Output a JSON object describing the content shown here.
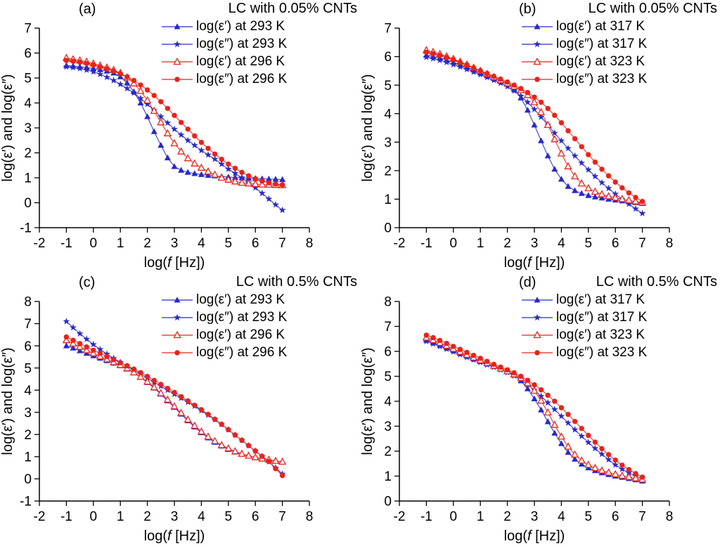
{
  "chart_data": {
    "type": "scatter",
    "colors": {
      "blue": "#2929c8",
      "red": "#e82319"
    },
    "axes_common": {
      "xlim": [
        -2,
        8
      ],
      "xticks": [
        -2,
        -1,
        0,
        1,
        2,
        3,
        4,
        5,
        6,
        7,
        8
      ],
      "xlabel_parts": [
        "log(",
        "f",
        " [Hz])"
      ],
      "ylabel": "log(ε′) and log(ε″)"
    },
    "panels": [
      {
        "letter": "(a)",
        "title": "LC with 0.05% CNTs",
        "ylim": [
          -1,
          7
        ],
        "yticks": [
          -1,
          0,
          1,
          2,
          3,
          4,
          5,
          6,
          7
        ],
        "series": [
          {
            "name": "log(ε′) at 293 K",
            "marker": "triangle-filled",
            "color": "blue",
            "x_start": -1,
            "x_step": 0.25,
            "y": [
              5.5,
              5.48,
              5.45,
              5.42,
              5.38,
              5.33,
              5.28,
              5.2,
              5.05,
              4.8,
              4.45,
              4.0,
              3.45,
              2.85,
              2.3,
              1.8,
              1.45,
              1.3,
              1.22,
              1.17,
              1.13,
              1.1,
              1.08,
              1.05,
              1.03,
              1.01,
              1.0,
              0.98,
              0.97,
              0.96,
              0.95,
              0.94,
              0.93
            ]
          },
          {
            "name": "log(ε″) at 293 K",
            "marker": "star",
            "color": "blue",
            "x_start": -1,
            "x_step": 0.25,
            "y": [
              5.45,
              5.42,
              5.38,
              5.32,
              5.25,
              5.15,
              5.03,
              4.9,
              4.75,
              4.58,
              4.4,
              4.18,
              3.95,
              3.7,
              3.45,
              3.2,
              2.95,
              2.72,
              2.5,
              2.3,
              2.1,
              1.92,
              1.75,
              1.55,
              1.35,
              1.18,
              1.0,
              0.8,
              0.6,
              0.38,
              0.15,
              -0.08,
              -0.3
            ]
          },
          {
            "name": "log(ε′) at 296 K",
            "marker": "triangle-open",
            "color": "red",
            "x_start": -1,
            "x_step": 0.25,
            "y": [
              5.8,
              5.75,
              5.7,
              5.65,
              5.58,
              5.5,
              5.42,
              5.32,
              5.2,
              5.02,
              4.78,
              4.48,
              4.1,
              3.68,
              3.22,
              2.78,
              2.38,
              2.05,
              1.78,
              1.57,
              1.4,
              1.25,
              1.12,
              1.0,
              0.92,
              0.85,
              0.8,
              0.77,
              0.75,
              0.73,
              0.72,
              0.71,
              0.7
            ]
          },
          {
            "name": "log(ε″) at 296 K",
            "marker": "circle-filled",
            "color": "red",
            "x_start": -1,
            "x_step": 0.25,
            "y": [
              5.7,
              5.67,
              5.63,
              5.58,
              5.52,
              5.45,
              5.37,
              5.28,
              5.17,
              5.05,
              4.9,
              4.72,
              4.52,
              4.3,
              4.05,
              3.78,
              3.5,
              3.22,
              2.95,
              2.68,
              2.42,
              2.18,
              1.95,
              1.74,
              1.55,
              1.38,
              1.22,
              1.08,
              0.96,
              0.87,
              0.8,
              0.75,
              0.72
            ]
          }
        ]
      },
      {
        "letter": "(b)",
        "title": "LC with 0.05% CNTs",
        "ylim": [
          0,
          7
        ],
        "yticks": [
          0,
          1,
          2,
          3,
          4,
          5,
          6,
          7
        ],
        "series": [
          {
            "name": "log(ε′) at 317 K",
            "marker": "triangle-filled",
            "color": "blue",
            "x_start": -1,
            "x_step": 0.25,
            "y": [
              6.05,
              6.0,
              5.95,
              5.88,
              5.8,
              5.72,
              5.63,
              5.53,
              5.43,
              5.33,
              5.23,
              5.13,
              5.03,
              4.85,
              4.55,
              4.12,
              3.6,
              3.05,
              2.52,
              2.05,
              1.7,
              1.45,
              1.3,
              1.2,
              1.13,
              1.08,
              1.04,
              1.0,
              0.97,
              0.94,
              0.91,
              0.88,
              0.85
            ]
          },
          {
            "name": "log(ε″) at 317 K",
            "marker": "star",
            "color": "blue",
            "x_start": -1,
            "x_step": 0.25,
            "y": [
              5.98,
              5.93,
              5.87,
              5.8,
              5.72,
              5.64,
              5.55,
              5.46,
              5.37,
              5.27,
              5.17,
              5.07,
              4.95,
              4.8,
              4.62,
              4.4,
              4.15,
              3.88,
              3.6,
              3.32,
              3.05,
              2.78,
              2.52,
              2.27,
              2.03,
              1.8,
              1.58,
              1.38,
              1.18,
              1.0,
              0.83,
              0.66,
              0.5
            ]
          },
          {
            "name": "log(ε′) at 323 K",
            "marker": "triangle-open",
            "color": "red",
            "x_start": -1,
            "x_step": 0.25,
            "y": [
              6.22,
              6.16,
              6.09,
              6.01,
              5.92,
              5.82,
              5.72,
              5.61,
              5.5,
              5.39,
              5.28,
              5.17,
              5.06,
              4.95,
              4.82,
              4.65,
              4.4,
              4.05,
              3.6,
              3.1,
              2.6,
              2.15,
              1.8,
              1.55,
              1.38,
              1.26,
              1.17,
              1.1,
              1.05,
              1.0,
              0.96,
              0.92,
              0.88
            ]
          },
          {
            "name": "log(ε″) at 323 K",
            "marker": "circle-filled",
            "color": "red",
            "x_start": -1,
            "x_step": 0.25,
            "y": [
              6.15,
              6.1,
              6.04,
              5.97,
              5.89,
              5.8,
              5.71,
              5.61,
              5.51,
              5.41,
              5.31,
              5.21,
              5.11,
              5.0,
              4.88,
              4.74,
              4.58,
              4.4,
              4.18,
              3.94,
              3.68,
              3.4,
              3.12,
              2.84,
              2.56,
              2.3,
              2.05,
              1.82,
              1.6,
              1.4,
              1.22,
              1.06,
              0.92
            ]
          }
        ]
      },
      {
        "letter": "(c)",
        "title": "LC with 0.5% CNTs",
        "ylim": [
          -1,
          8
        ],
        "yticks": [
          -1,
          0,
          1,
          2,
          3,
          4,
          5,
          6,
          7,
          8
        ],
        "series": [
          {
            "name": "log(ε′) at 293 K",
            "marker": "triangle-filled",
            "color": "blue",
            "x_start": -1,
            "x_step": 0.25,
            "y": [
              6.0,
              5.9,
              5.78,
              5.66,
              5.55,
              5.44,
              5.33,
              5.22,
              5.1,
              4.95,
              4.78,
              4.58,
              4.35,
              4.1,
              3.82,
              3.52,
              3.22,
              2.92,
              2.62,
              2.34,
              2.08,
              1.85,
              1.65,
              1.48,
              1.33,
              1.21,
              1.11,
              1.03,
              0.96,
              0.9,
              0.85,
              0.8,
              0.76
            ]
          },
          {
            "name": "log(ε″) at 293 K",
            "marker": "star",
            "color": "blue",
            "x_start": -1,
            "x_step": 0.25,
            "y": [
              7.1,
              6.82,
              6.55,
              6.3,
              6.06,
              5.84,
              5.63,
              5.44,
              5.26,
              5.08,
              4.9,
              4.72,
              4.54,
              4.36,
              4.18,
              4.0,
              3.82,
              3.64,
              3.46,
              3.28,
              3.08,
              2.88,
              2.67,
              2.45,
              2.22,
              1.98,
              1.74,
              1.5,
              1.26,
              1.02,
              0.78,
              0.5,
              0.22
            ]
          },
          {
            "name": "log(ε′) at 296 K",
            "marker": "triangle-open",
            "color": "red",
            "x_start": -1,
            "x_step": 0.25,
            "y": [
              6.25,
              6.1,
              5.95,
              5.8,
              5.66,
              5.52,
              5.39,
              5.26,
              5.13,
              4.98,
              4.8,
              4.6,
              4.38,
              4.13,
              3.86,
              3.57,
              3.27,
              2.97,
              2.67,
              2.39,
              2.13,
              1.9,
              1.7,
              1.52,
              1.37,
              1.24,
              1.13,
              1.04,
              0.97,
              0.91,
              0.86,
              0.81,
              0.77
            ]
          },
          {
            "name": "log(ε″) at 296 K",
            "marker": "circle-filled",
            "color": "red",
            "x_start": -1,
            "x_step": 0.25,
            "y": [
              6.4,
              6.25,
              6.1,
              5.95,
              5.8,
              5.66,
              5.52,
              5.38,
              5.24,
              5.1,
              4.95,
              4.79,
              4.62,
              4.44,
              4.26,
              4.08,
              3.9,
              3.71,
              3.52,
              3.32,
              3.12,
              2.91,
              2.69,
              2.46,
              2.22,
              1.98,
              1.74,
              1.5,
              1.26,
              1.02,
              0.78,
              0.46,
              0.15
            ]
          }
        ]
      },
      {
        "letter": "(d)",
        "title": "LC with 0.5% CNTs",
        "ylim": [
          0,
          8
        ],
        "yticks": [
          0,
          1,
          2,
          3,
          4,
          5,
          6,
          7,
          8
        ],
        "series": [
          {
            "name": "log(ε′) at 317 K",
            "marker": "triangle-filled",
            "color": "blue",
            "x_start": -1,
            "x_step": 0.25,
            "y": [
              6.45,
              6.35,
              6.25,
              6.14,
              6.03,
              5.92,
              5.81,
              5.7,
              5.6,
              5.5,
              5.4,
              5.3,
              5.2,
              5.05,
              4.82,
              4.5,
              4.1,
              3.65,
              3.18,
              2.72,
              2.3,
              1.95,
              1.68,
              1.48,
              1.33,
              1.22,
              1.13,
              1.06,
              1.0,
              0.95,
              0.9,
              0.85,
              0.8
            ]
          },
          {
            "name": "log(ε″) at 317 K",
            "marker": "star",
            "color": "blue",
            "x_start": -1,
            "x_step": 0.25,
            "y": [
              6.4,
              6.3,
              6.2,
              6.09,
              5.98,
              5.87,
              5.76,
              5.66,
              5.56,
              5.46,
              5.36,
              5.26,
              5.15,
              5.02,
              4.86,
              4.67,
              4.45,
              4.2,
              3.94,
              3.67,
              3.4,
              3.13,
              2.86,
              2.6,
              2.35,
              2.11,
              1.88,
              1.66,
              1.45,
              1.28,
              1.13,
              1.0,
              0.9
            ]
          },
          {
            "name": "log(ε′) at 323 K",
            "marker": "triangle-open",
            "color": "red",
            "x_start": -1,
            "x_step": 0.25,
            "y": [
              6.55,
              6.45,
              6.34,
              6.22,
              6.1,
              5.98,
              5.86,
              5.75,
              5.64,
              5.53,
              5.42,
              5.31,
              5.2,
              5.08,
              4.93,
              4.72,
              4.42,
              4.02,
              3.55,
              3.05,
              2.58,
              2.18,
              1.86,
              1.62,
              1.45,
              1.32,
              1.22,
              1.14,
              1.07,
              1.01,
              0.96,
              0.91,
              0.86
            ]
          },
          {
            "name": "log(ε″) at 323 K",
            "marker": "circle-filled",
            "color": "red",
            "x_start": -1,
            "x_step": 0.25,
            "y": [
              6.65,
              6.55,
              6.44,
              6.32,
              6.2,
              6.08,
              5.96,
              5.84,
              5.72,
              5.6,
              5.48,
              5.37,
              5.26,
              5.14,
              5.0,
              4.84,
              4.66,
              4.46,
              4.24,
              4.0,
              3.74,
              3.47,
              3.19,
              2.91,
              2.63,
              2.36,
              2.1,
              1.86,
              1.64,
              1.44,
              1.26,
              1.1,
              0.96
            ]
          }
        ]
      }
    ]
  }
}
